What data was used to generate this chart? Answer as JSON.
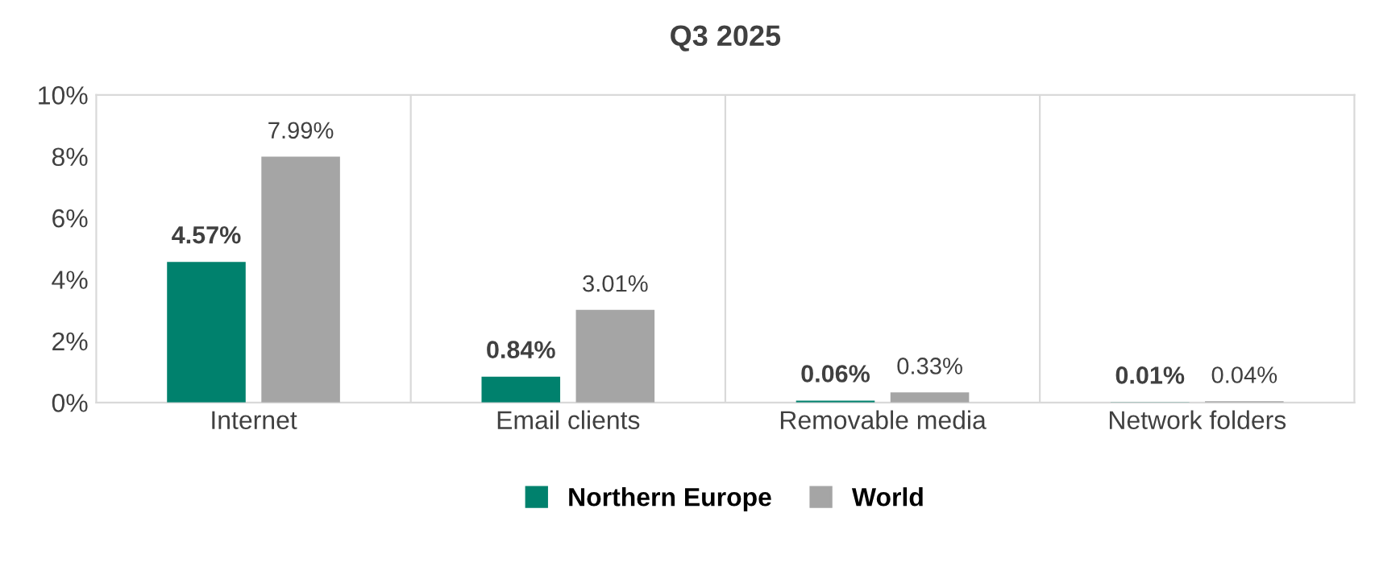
{
  "chart_data": {
    "type": "bar",
    "title": "Q3 2025",
    "categories": [
      "Internet",
      "Email clients",
      "Removable media",
      "Network folders"
    ],
    "series": [
      {
        "name": "Northern Europe",
        "color": "#00816d",
        "values": [
          4.57,
          0.84,
          0.06,
          0.01
        ],
        "value_labels": [
          "4.57%",
          "0.84%",
          "0.06%",
          "0.01%"
        ]
      },
      {
        "name": "World",
        "color": "#a5a5a5",
        "values": [
          7.99,
          3.01,
          0.33,
          0.04
        ],
        "value_labels": [
          "7.99%",
          "3.01%",
          "0.33%",
          "0.04%"
        ]
      }
    ],
    "ylim": [
      0,
      10
    ],
    "yticks": [
      {
        "value": 0,
        "label": "0%"
      },
      {
        "value": 2,
        "label": "2%"
      },
      {
        "value": 4,
        "label": "4%"
      },
      {
        "value": 6,
        "label": "6%"
      },
      {
        "value": 8,
        "label": "8%"
      },
      {
        "value": 10,
        "label": "10%"
      }
    ],
    "grid": "x",
    "legend": "bottom"
  }
}
